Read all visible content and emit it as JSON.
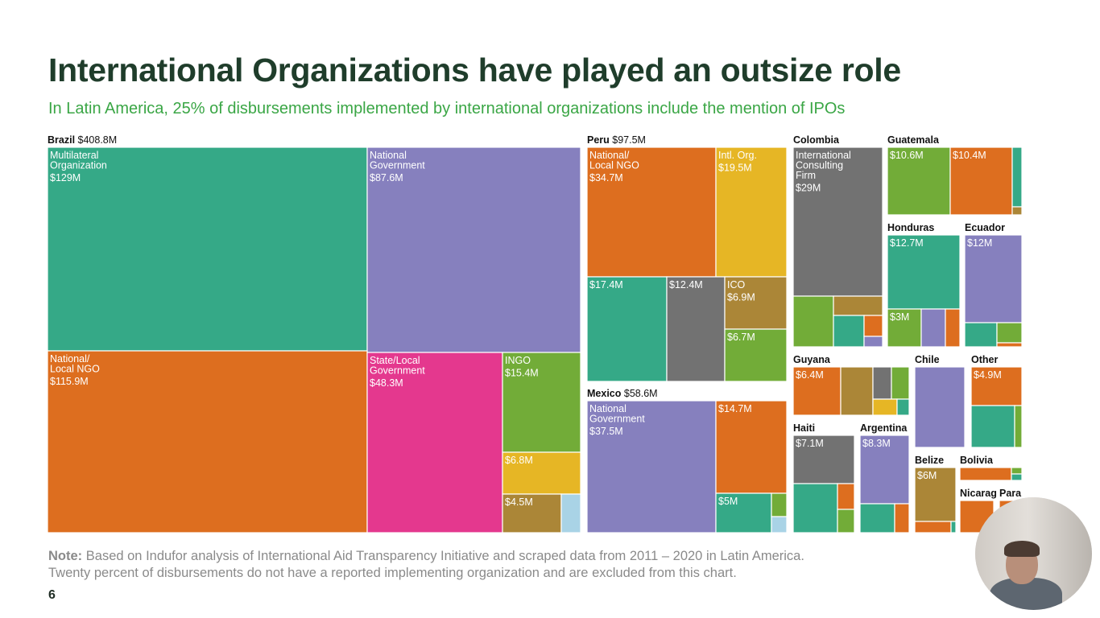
{
  "title": "International Organizations have played an outsize role",
  "subtitle": "In Latin America, 25% of disbursements implemented by international organizations include the mention of IPOs",
  "note_label": "Note:",
  "note_line1": " Based on Indufor analysis of International Aid Transparency Initiative and scraped data from 2011 – 2020 in Latin America.",
  "note_line2": "Twenty percent of disbursements do not have a reported implementing organization and are excluded from this chart.",
  "page_number": "6",
  "colors": {
    "teal": "#35a987",
    "purple": "#8680be",
    "orange": "#dd6e1f",
    "magenta": "#e4388e",
    "green": "#72ac38",
    "yellow": "#e6b625",
    "gray": "#727272",
    "brown": "#ab8637",
    "lightblue": "#a9d3e6"
  },
  "chart_data": {
    "type": "treemap",
    "countries": [
      {
        "name": "Brazil",
        "total": "$408.8M",
        "cells": [
          {
            "label": "Multilateral\nOrganization",
            "value": "$129M",
            "color": "teal"
          },
          {
            "label": "National\nGovernment",
            "value": "$87.6M",
            "color": "purple"
          },
          {
            "label": "National/\nLocal NGO",
            "value": "$115.9M",
            "color": "orange"
          },
          {
            "label": "State/Local\nGovernment",
            "value": "$48.3M",
            "color": "magenta"
          },
          {
            "label": "INGO",
            "value": "$15.4M",
            "color": "green"
          },
          {
            "label": "",
            "value": "$6.8M",
            "color": "yellow"
          },
          {
            "label": "",
            "value": "$4.5M",
            "color": "brown"
          },
          {
            "label": "",
            "value": "",
            "color": "lightblue"
          }
        ]
      },
      {
        "name": "Peru",
        "total": "$97.5M",
        "cells": [
          {
            "label": "National/\nLocal NGO",
            "value": "$34.7M",
            "color": "orange"
          },
          {
            "label": "Intl. Org.",
            "value": "$19.5M",
            "color": "yellow"
          },
          {
            "label": "",
            "value": "$17.4M",
            "color": "teal"
          },
          {
            "label": "",
            "value": "$12.4M",
            "color": "gray"
          },
          {
            "label": "ICO",
            "value": "$6.9M",
            "color": "brown"
          },
          {
            "label": "",
            "value": "$6.7M",
            "color": "green"
          }
        ]
      },
      {
        "name": "Mexico",
        "total": "$58.6M",
        "cells": [
          {
            "label": "National\nGovernment",
            "value": "$37.5M",
            "color": "purple"
          },
          {
            "label": "",
            "value": "$14.7M",
            "color": "orange"
          },
          {
            "label": "",
            "value": "$5M",
            "color": "teal"
          },
          {
            "label": "",
            "value": "",
            "color": "green"
          },
          {
            "label": "",
            "value": "",
            "color": "lightblue"
          }
        ]
      },
      {
        "name": "Colombia",
        "total": "",
        "cells": [
          {
            "label": "International\nConsulting\nFirm",
            "value": "$29M",
            "color": "gray"
          },
          {
            "label": "",
            "value": "",
            "color": "green"
          },
          {
            "label": "",
            "value": "",
            "color": "brown"
          },
          {
            "label": "",
            "value": "",
            "color": "teal"
          },
          {
            "label": "",
            "value": "",
            "color": "orange"
          },
          {
            "label": "",
            "value": "",
            "color": "purple"
          }
        ]
      },
      {
        "name": "Guatemala",
        "total": "",
        "cells": [
          {
            "label": "",
            "value": "$10.6M",
            "color": "green"
          },
          {
            "label": "",
            "value": "$10.4M",
            "color": "orange"
          },
          {
            "label": "",
            "value": "",
            "color": "teal"
          },
          {
            "label": "",
            "value": "",
            "color": "brown"
          }
        ]
      },
      {
        "name": "Honduras",
        "total": "",
        "cells": [
          {
            "label": "",
            "value": "$12.7M",
            "color": "teal"
          },
          {
            "label": "",
            "value": "$3M",
            "color": "green"
          },
          {
            "label": "",
            "value": "",
            "color": "purple"
          },
          {
            "label": "",
            "value": "",
            "color": "orange"
          }
        ]
      },
      {
        "name": "Ecuador",
        "total": "",
        "cells": [
          {
            "label": "",
            "value": "$12M",
            "color": "purple"
          },
          {
            "label": "",
            "value": "",
            "color": "teal"
          },
          {
            "label": "",
            "value": "",
            "color": "green"
          },
          {
            "label": "",
            "value": "",
            "color": "orange"
          }
        ]
      },
      {
        "name": "Guyana",
        "total": "",
        "cells": [
          {
            "label": "",
            "value": "$6.4M",
            "color": "orange"
          },
          {
            "label": "",
            "value": "",
            "color": "brown"
          },
          {
            "label": "",
            "value": "",
            "color": "gray"
          },
          {
            "label": "",
            "value": "",
            "color": "green"
          },
          {
            "label": "",
            "value": "",
            "color": "yellow"
          },
          {
            "label": "",
            "value": "",
            "color": "teal"
          }
        ]
      },
      {
        "name": "Chile",
        "total": "",
        "cells": [
          {
            "label": "",
            "value": "",
            "color": "purple"
          }
        ]
      },
      {
        "name": "Other",
        "total": "",
        "cells": [
          {
            "label": "",
            "value": "$4.9M",
            "color": "orange"
          },
          {
            "label": "",
            "value": "",
            "color": "teal"
          },
          {
            "label": "",
            "value": "",
            "color": "green"
          }
        ]
      },
      {
        "name": "Haiti",
        "total": "",
        "cells": [
          {
            "label": "",
            "value": "$7.1M",
            "color": "gray"
          },
          {
            "label": "",
            "value": "",
            "color": "teal"
          },
          {
            "label": "",
            "value": "",
            "color": "orange"
          },
          {
            "label": "",
            "value": "",
            "color": "green"
          }
        ]
      },
      {
        "name": "Argentina",
        "total": "",
        "cells": [
          {
            "label": "",
            "value": "$8.3M",
            "color": "purple"
          },
          {
            "label": "",
            "value": "",
            "color": "teal"
          },
          {
            "label": "",
            "value": "",
            "color": "orange"
          }
        ]
      },
      {
        "name": "Belize",
        "total": "",
        "cells": [
          {
            "label": "",
            "value": "$6M",
            "color": "brown"
          },
          {
            "label": "",
            "value": "",
            "color": "orange"
          },
          {
            "label": "",
            "value": "",
            "color": "teal"
          }
        ]
      },
      {
        "name": "Bolivia",
        "total": "",
        "cells": [
          {
            "label": "",
            "value": "",
            "color": "orange"
          },
          {
            "label": "",
            "value": "",
            "color": "green"
          },
          {
            "label": "",
            "value": "",
            "color": "teal"
          }
        ]
      },
      {
        "name": "Nicarag",
        "total": "",
        "cells": [
          {
            "label": "",
            "value": "",
            "color": "orange"
          }
        ]
      },
      {
        "name": "Para",
        "total": "",
        "cells": [
          {
            "label": "",
            "value": "",
            "color": "orange"
          }
        ]
      }
    ]
  }
}
